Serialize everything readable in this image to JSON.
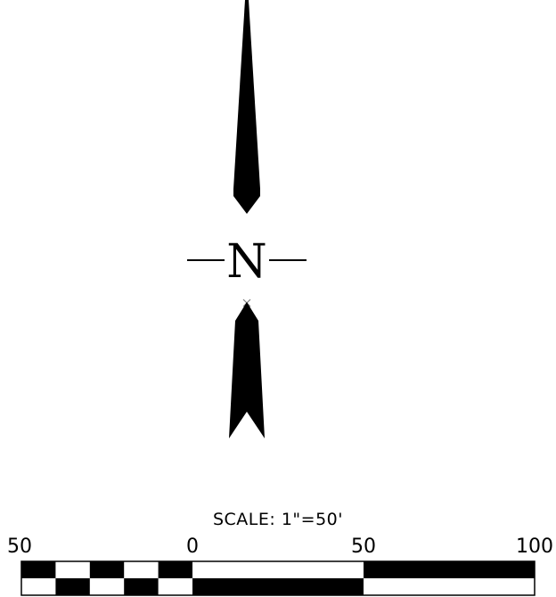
{
  "north_arrow": {
    "letter": "N",
    "color": "#000000",
    "origin_mark_color": "#808080"
  },
  "scale_bar": {
    "title": "SCALE:  1\"=50'",
    "tick_labels": [
      "50",
      "0",
      "50",
      "100"
    ],
    "tick_values": [
      -50,
      0,
      50,
      100
    ],
    "fill_color": "#000000",
    "background_color": "#ffffff"
  }
}
